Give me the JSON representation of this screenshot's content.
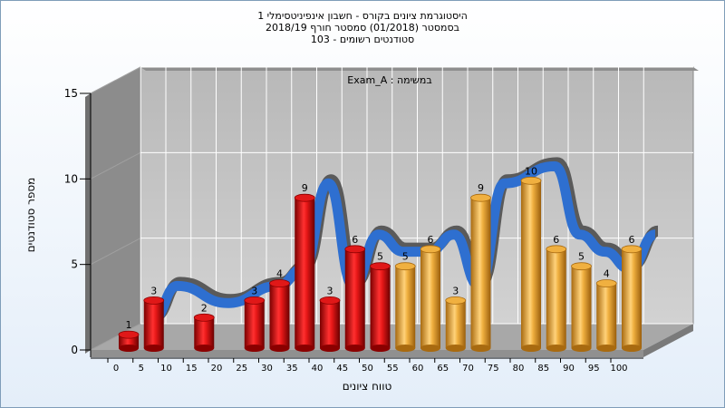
{
  "chart_data": {
    "type": "bar",
    "title_lines": [
      "היסטוגרמת ציונים בקורס - חשבון אינפיניטסימלי 1",
      "בסמסטר  (01/2018)  סמסטר חורף 2018/19",
      "סטודנטים רשומים - 103"
    ],
    "annotation": "Exam_A : במשימה",
    "xlabel": "טווח ציונים",
    "ylabel": "מספר סטודנטים",
    "x_ticks": [
      "0",
      "5",
      "10",
      "15",
      "20",
      "25",
      "30",
      "35",
      "40",
      "45",
      "50",
      "55",
      "60",
      "65",
      "70",
      "75",
      "80",
      "85",
      "90",
      "95",
      "100"
    ],
    "y_ticks": [
      0,
      5,
      10,
      15
    ],
    "ylim": [
      0,
      15
    ],
    "grid": true,
    "bars": [
      {
        "x": 0,
        "value": 1,
        "color": "red"
      },
      {
        "x": 5,
        "value": 3,
        "color": "red"
      },
      {
        "x": 15,
        "value": 2,
        "color": "red"
      },
      {
        "x": 25,
        "value": 3,
        "color": "red"
      },
      {
        "x": 30,
        "value": 4,
        "color": "red"
      },
      {
        "x": 35,
        "value": 9,
        "color": "red"
      },
      {
        "x": 40,
        "value": 3,
        "color": "red"
      },
      {
        "x": 45,
        "value": 6,
        "color": "red"
      },
      {
        "x": 50,
        "value": 5,
        "color": "red"
      },
      {
        "x": 55,
        "value": 5,
        "color": "orange"
      },
      {
        "x": 60,
        "value": 6,
        "color": "orange"
      },
      {
        "x": 65,
        "value": 3,
        "color": "orange"
      },
      {
        "x": 70,
        "value": 9,
        "color": "orange"
      },
      {
        "x": 80,
        "value": 10,
        "color": "orange"
      },
      {
        "x": 85,
        "value": 6,
        "color": "orange"
      },
      {
        "x": 90,
        "value": 5,
        "color": "orange"
      },
      {
        "x": 95,
        "value": 4,
        "color": "orange"
      },
      {
        "x": 100,
        "value": 6,
        "color": "orange"
      }
    ],
    "colors": {
      "red_main": "#e01818",
      "red_dark": "#8a0000",
      "orange_main": "#f0b040",
      "orange_dark": "#a86a10",
      "ribbon": "#2e6fd0",
      "ribbon_back": "#5a5a5a",
      "wall": "#c0c0c0",
      "side_wall": "#8c8c8c",
      "grid": "#ffffff"
    }
  }
}
